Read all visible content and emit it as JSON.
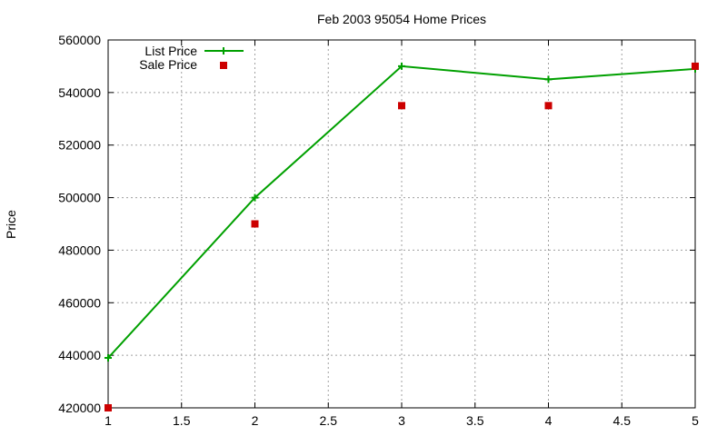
{
  "chart_data": {
    "type": "line",
    "title": "Feb 2003 95054 Home Prices",
    "xlabel": "",
    "ylabel": "Price",
    "xlim": [
      1,
      5
    ],
    "ylim": [
      420000,
      560000
    ],
    "xticks": [
      1,
      1.5,
      2,
      2.5,
      3,
      3.5,
      4,
      4.5,
      5
    ],
    "yticks": [
      420000,
      440000,
      460000,
      480000,
      500000,
      520000,
      540000,
      560000
    ],
    "grid": true,
    "legend_position": "top-left",
    "series": [
      {
        "name": "List Price",
        "style": "line with plus markers",
        "color": "#00a000",
        "x": [
          1,
          2,
          3,
          4,
          5
        ],
        "y": [
          439000,
          500000,
          550000,
          545000,
          549000
        ]
      },
      {
        "name": "Sale Price",
        "style": "square markers",
        "color": "#cc0000",
        "x": [
          1,
          2,
          3,
          4,
          5
        ],
        "y": [
          420000,
          490000,
          535000,
          535000,
          550000
        ]
      }
    ]
  }
}
